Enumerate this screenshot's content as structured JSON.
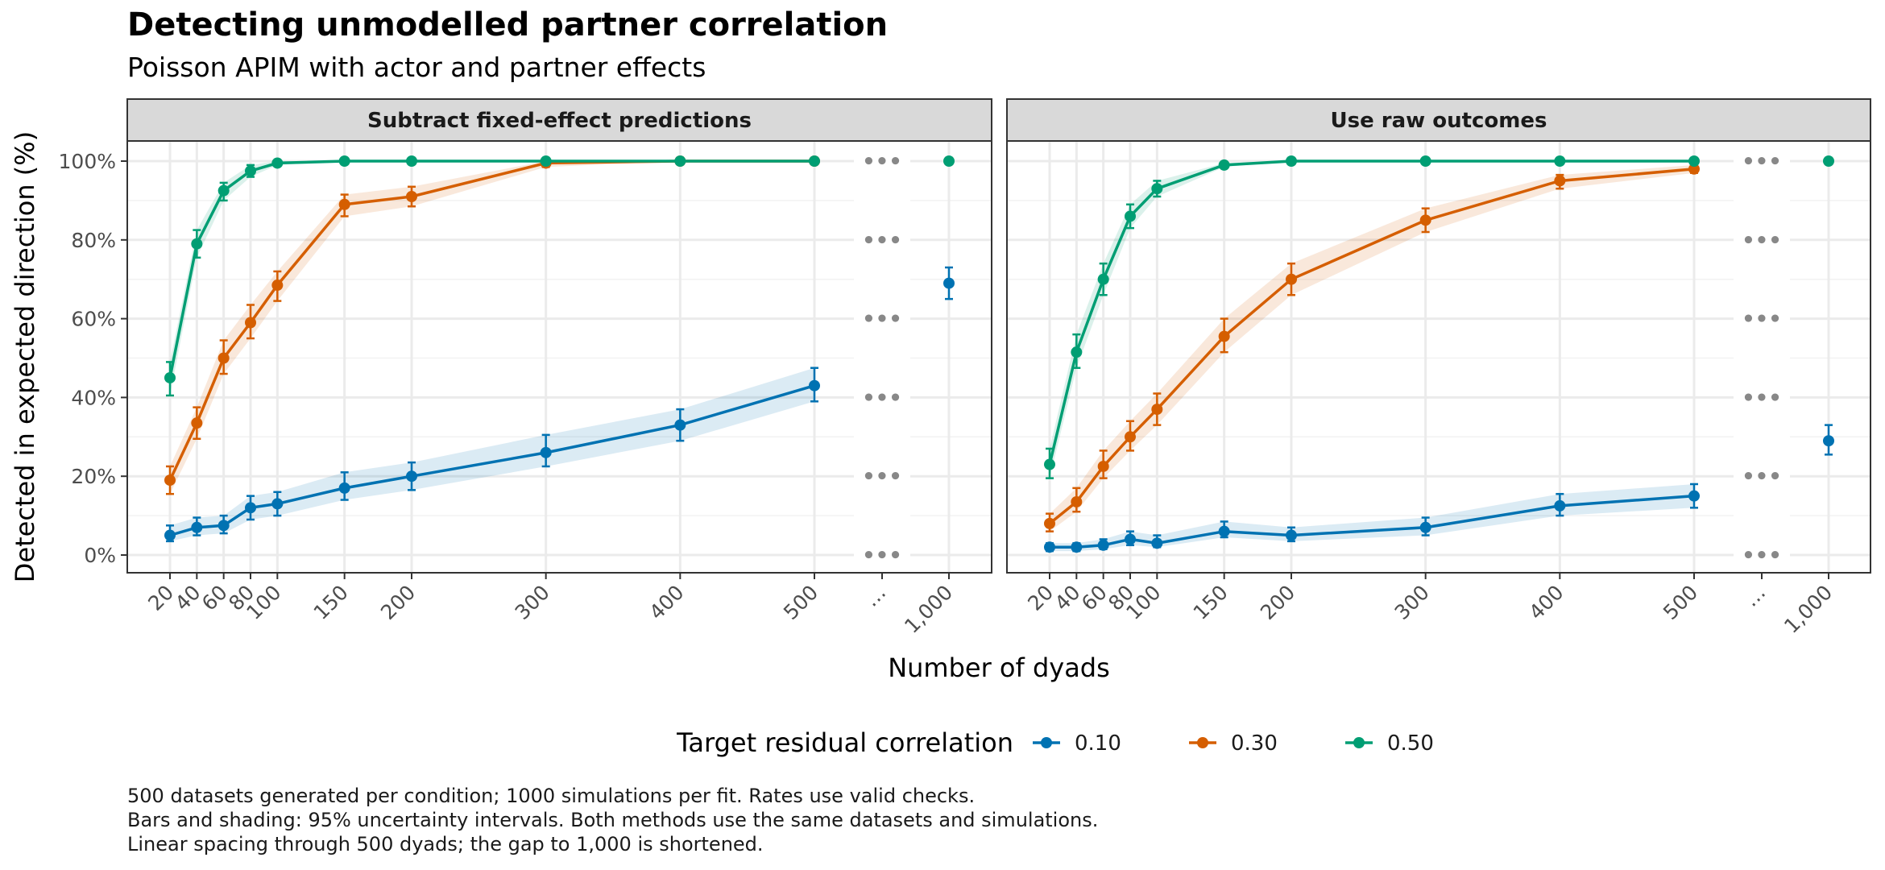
{
  "title": "Detecting unmodelled partner correlation",
  "subtitle": "Poisson APIM with actor and partner effects",
  "captions": [
    "500 datasets generated per condition; 1000 simulations per fit. Rates use valid checks.",
    "Bars and shading: 95% uncertainty intervals. Both methods use the same datasets and simulations.",
    "Linear spacing through 500 dyads; the gap to 1,000 is shortened."
  ],
  "chart_data": {
    "type": "line",
    "xlabel": "Number of dyads",
    "ylabel": "Detected in expected direction (%)",
    "x_ticks": [
      "20",
      "40",
      "60",
      "80",
      "100",
      "150",
      "200",
      "300",
      "400",
      "500",
      "…",
      "1,000"
    ],
    "y_ticks": [
      "0%",
      "20%",
      "40%",
      "60%",
      "80%",
      "100%"
    ],
    "ylim": [
      0,
      100
    ],
    "gap_marker": "•••",
    "legend": {
      "title": "Target residual correlation",
      "position": "bottom"
    },
    "colors": {
      "0.10": "#0072B2",
      "0.30": "#D55E00",
      "0.50": "#009E73"
    },
    "panels": [
      {
        "title": "Subtract fixed-effect predictions",
        "series": [
          {
            "name": "0.10",
            "x": [
              20,
              40,
              60,
              80,
              100,
              150,
              200,
              300,
              400,
              500
            ],
            "y": [
              5,
              7,
              7.5,
              12,
              13,
              17,
              20,
              26,
              33,
              43
            ],
            "lo": [
              3.5,
              5,
              5.5,
              9,
              10,
              14,
              16.5,
              22.5,
              29,
              39
            ],
            "hi": [
              7.5,
              9.5,
              10,
              15,
              16,
              21,
              23.5,
              30.5,
              37,
              47.5
            ],
            "x_far": 1000,
            "y_far": 69,
            "lo_far": 65,
            "hi_far": 73
          },
          {
            "name": "0.30",
            "x": [
              20,
              40,
              60,
              80,
              100,
              150,
              200,
              300,
              400,
              500
            ],
            "y": [
              19,
              33.5,
              50,
              59,
              68.5,
              89,
              91,
              99.5,
              100,
              100
            ],
            "lo": [
              15.5,
              29.5,
              46,
              55,
              64.5,
              86,
              88.5,
              98.5,
              100,
              100
            ],
            "hi": [
              22.5,
              37.5,
              54.5,
              63.5,
              72,
              91.5,
              93.5,
              100,
              100,
              100
            ],
            "x_far": 1000,
            "y_far": null
          },
          {
            "name": "0.50",
            "x": [
              20,
              40,
              60,
              80,
              100,
              150,
              200,
              300,
              400,
              500
            ],
            "y": [
              45,
              79,
              92.5,
              97.5,
              99.5,
              100,
              100,
              100,
              100,
              100
            ],
            "lo": [
              40.5,
              75.5,
              90,
              96,
              99,
              100,
              100,
              100,
              100,
              100
            ],
            "hi": [
              49,
              82.5,
              94.5,
              99,
              100,
              100,
              100,
              100,
              100,
              100
            ],
            "x_far": 1000,
            "y_far": 100,
            "lo_far": 100,
            "hi_far": 100
          }
        ]
      },
      {
        "title": "Use raw outcomes",
        "series": [
          {
            "name": "0.10",
            "x": [
              20,
              40,
              60,
              80,
              100,
              150,
              200,
              300,
              400,
              500
            ],
            "y": [
              2,
              2,
              2.5,
              4,
              3,
              6,
              5,
              7,
              12.5,
              15
            ],
            "lo": [
              1,
              1,
              1.5,
              2.5,
              2,
              4.5,
              3.5,
              5,
              10,
              12
            ],
            "hi": [
              3,
              3,
              4,
              6,
              5,
              8.5,
              7,
              9.5,
              15.5,
              18
            ],
            "x_far": 1000,
            "y_far": 29,
            "lo_far": 25.5,
            "hi_far": 33
          },
          {
            "name": "0.30",
            "x": [
              20,
              40,
              60,
              80,
              100,
              150,
              200,
              300,
              400,
              500
            ],
            "y": [
              8,
              13.5,
              22.5,
              30,
              37,
              55.5,
              70,
              85,
              95,
              98
            ],
            "lo": [
              6,
              11,
              19.5,
              26.5,
              33,
              51.5,
              66,
              82,
              93,
              97
            ],
            "hi": [
              10.5,
              17,
              26.5,
              34,
              41,
              60,
              74,
              88,
              96.5,
              99
            ],
            "x_far": 1000,
            "y_far": null
          },
          {
            "name": "0.50",
            "x": [
              20,
              40,
              60,
              80,
              100,
              150,
              200,
              300,
              400,
              500
            ],
            "y": [
              23,
              51.5,
              70,
              86,
              93,
              99,
              100,
              100,
              100,
              100
            ],
            "lo": [
              19.5,
              47.5,
              66,
              83,
              91,
              98.5,
              100,
              100,
              100,
              100
            ],
            "hi": [
              27,
              56,
              74,
              89,
              95,
              99.5,
              100,
              100,
              100,
              100
            ],
            "x_far": 1000,
            "y_far": 100,
            "lo_far": 100,
            "hi_far": 100
          }
        ]
      }
    ]
  }
}
